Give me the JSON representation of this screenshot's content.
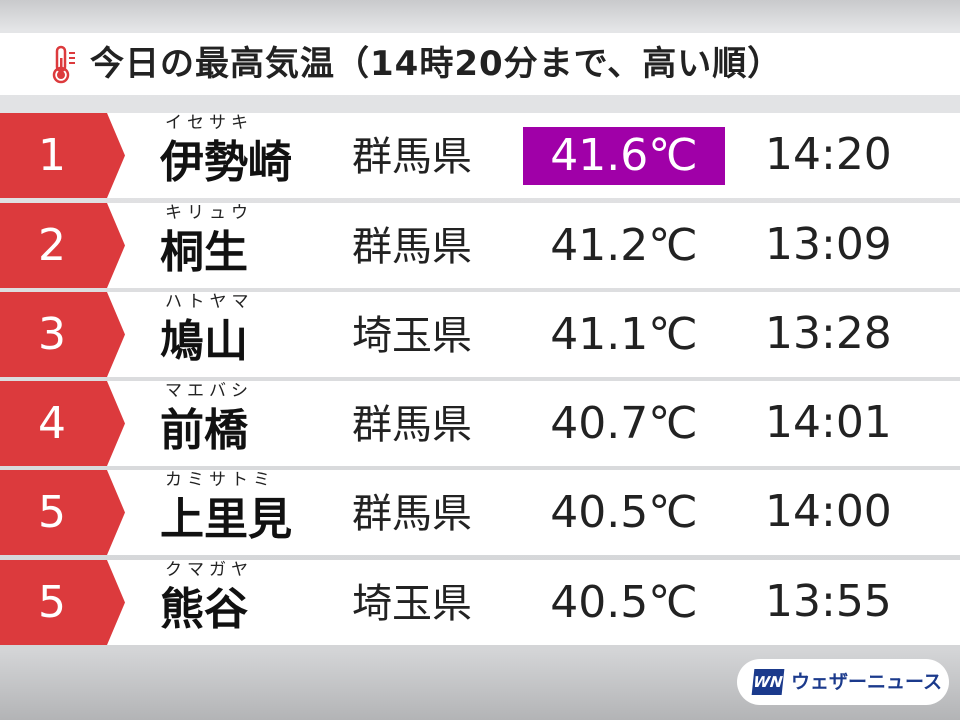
{
  "header": {
    "title": "今日の最高気温（14時20分まで、高い順）",
    "icon": "thermometer-icon",
    "icon_color": "#dc3a3d"
  },
  "rows": [
    {
      "rank": "1",
      "kana": "イセサキ",
      "city": "伊勢崎",
      "pref": "群馬県",
      "temp": "41.6℃",
      "time": "14:20",
      "highlight": true
    },
    {
      "rank": "2",
      "kana": "キリュウ",
      "city": "桐生",
      "pref": "群馬県",
      "temp": "41.2℃",
      "time": "13:09"
    },
    {
      "rank": "3",
      "kana": "ハトヤマ",
      "city": "鳩山",
      "pref": "埼玉県",
      "temp": "41.1℃",
      "time": "13:28"
    },
    {
      "rank": "4",
      "kana": "マエバシ",
      "city": "前橋",
      "pref": "群馬県",
      "temp": "40.7℃",
      "time": "14:01"
    },
    {
      "rank": "5",
      "kana": "カミサトミ",
      "city": "上里見",
      "pref": "群馬県",
      "temp": "40.5℃",
      "time": "14:00"
    },
    {
      "rank": "5",
      "kana": "クマガヤ",
      "city": "熊谷",
      "pref": "埼玉県",
      "temp": "40.5℃",
      "time": "13:55"
    }
  ],
  "colors": {
    "rank_bg": "#dc3a3d",
    "highlight_bg": "#a000a8",
    "brand": "#1b3a8c"
  },
  "logo": {
    "mark": "WN",
    "text": "ウェザーニュース"
  }
}
